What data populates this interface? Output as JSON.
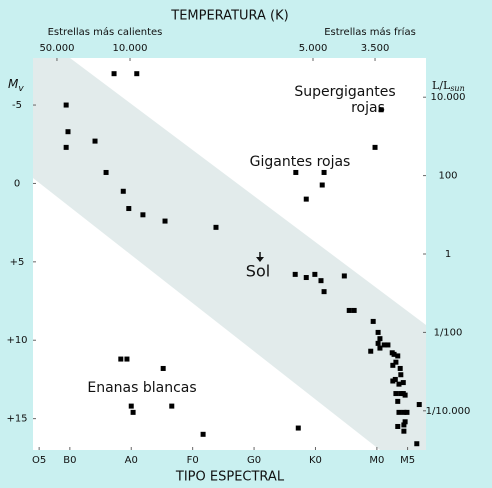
{
  "chart_data": {
    "type": "scatter",
    "title": "TEMPERATURA (K)",
    "top_left_label": "Estrellas más calientes",
    "top_right_label": "Estrellas más frías",
    "x_label": "TIPO ESPECTRAL",
    "y_label": "M",
    "y_label_sub": "v",
    "y2_label": "L/L",
    "y2_label_sub": "sun",
    "annotations": [
      "Supergigantes",
      "rojas",
      "Gigantes rojas",
      "Sol",
      "Enanas blancas"
    ],
    "color": "#000000",
    "xlim": [
      4,
      68
    ],
    "xticks": [
      {
        "value": 5,
        "label": "O5"
      },
      {
        "value": 10,
        "label": "B0"
      },
      {
        "value": 20,
        "label": "A0"
      },
      {
        "value": 30,
        "label": "F0"
      },
      {
        "value": 40,
        "label": "G0"
      },
      {
        "value": 50,
        "label": "K0"
      },
      {
        "value": 60,
        "label": "M0"
      },
      {
        "value": 65,
        "label": "M5"
      }
    ],
    "x2ticks": [
      {
        "value": 7.9,
        "label": "50.000"
      },
      {
        "value": 19.8,
        "label": "10.000"
      },
      {
        "value": 49.6,
        "label": "5.000"
      },
      {
        "value": 59.7,
        "label": "3.500"
      }
    ],
    "ylim": [
      -8,
      17
    ],
    "yticks": [
      -5,
      0,
      {
        "value": 5,
        "label": "+5"
      },
      {
        "value": 10,
        "label": "+10"
      },
      {
        "value": 15,
        "label": "+15"
      }
    ],
    "y2_log": true,
    "y2lim": [
      1e-05,
      100000
    ],
    "y2ticks": [
      {
        "value": 10000,
        "label": "10.000"
      },
      100,
      1,
      {
        "value": 0.01,
        "label": "1/100"
      },
      {
        "value": 0.0001,
        "label": "1/10.000"
      }
    ],
    "x": [
      17.2,
      20.9,
      9.4,
      9.7,
      9.4,
      14.1,
      15.9,
      18.7,
      19.6,
      21.9,
      25.5,
      33.8,
      60.7,
      59.7,
      46.8,
      51.4,
      51.1,
      48.5,
      46.7,
      48.5,
      49.9,
      50.9,
      51.4,
      54.7,
      55.5,
      56.3,
      59.4,
      60.2,
      60.5,
      60.2,
      60.5,
      59.0,
      61.2,
      61.8,
      62.5,
      62.8,
      63.4,
      63.1,
      63.8,
      62.6,
      63.9,
      63.0,
      63.6,
      62.6,
      64.3,
      63.9,
      63.1,
      64.3,
      63.4,
      64.6,
      63.6,
      64.4,
      64.9,
      64.6,
      64.4,
      63.4,
      64.4,
      66.9,
      66.5,
      18.3,
      19.3,
      25.2,
      20.0,
      20.3,
      26.6,
      31.7,
      47.2
    ],
    "values": [
      -7.0,
      -7.0,
      -5.0,
      -3.3,
      -2.3,
      -2.7,
      -0.7,
      0.5,
      1.6,
      2.0,
      2.4,
      2.8,
      -4.7,
      -2.3,
      -0.7,
      -0.7,
      0.1,
      1.0,
      5.8,
      6.0,
      5.8,
      6.2,
      6.9,
      5.9,
      8.1,
      8.1,
      8.8,
      9.5,
      9.9,
      10.2,
      10.5,
      10.7,
      10.3,
      10.3,
      10.8,
      10.9,
      11.0,
      11.4,
      11.8,
      11.6,
      12.2,
      12.5,
      12.8,
      12.6,
      12.7,
      13.4,
      13.4,
      13.4,
      13.9,
      13.5,
      14.6,
      14.6,
      14.6,
      15.2,
      15.4,
      15.5,
      15.8,
      14.1,
      16.6,
      11.2,
      11.2,
      11.8,
      14.2,
      14.6,
      14.2,
      16.0,
      15.6
    ]
  }
}
